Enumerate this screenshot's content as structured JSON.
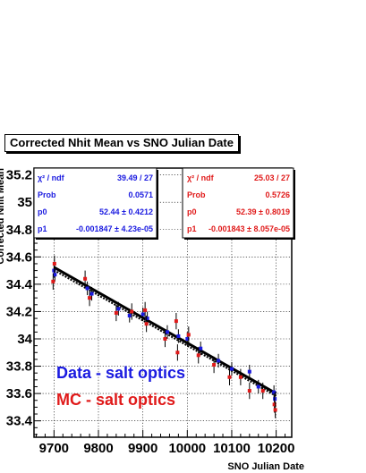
{
  "colors": {
    "data": "#1a1ae0",
    "mc": "#e01a1a",
    "fit": "#000000"
  },
  "chart_data": {
    "type": "scatter",
    "title": "Corrected Nhit Mean vs SNO Julian Date",
    "xlabel": "SNO Julian Date",
    "ylabel": "Corrected Nhit Mean",
    "xlim": [
      9655,
      10235
    ],
    "ylim": [
      33.28,
      35.25
    ],
    "xticks": [
      "9700",
      "9800",
      "9900",
      "10000",
      "10100",
      "10200"
    ],
    "xtick_values": [
      9700,
      9800,
      9900,
      10000,
      10100,
      10200
    ],
    "yticks": [
      "33.4",
      "33.6",
      "33.8",
      "34",
      "34.2",
      "34.4",
      "34.6",
      "34.8",
      "35",
      "35.2"
    ],
    "ytick_values": [
      33.4,
      33.6,
      33.8,
      34.0,
      34.2,
      34.4,
      34.6,
      34.8,
      35.0,
      35.2
    ],
    "grid": true,
    "series": [
      {
        "name": "Data - salt optics",
        "color": "#1a1ae0",
        "points": [
          {
            "x": 9700,
            "y": 34.5,
            "err": 0.05
          },
          {
            "x": 9702,
            "y": 34.47,
            "err": 0.05
          },
          {
            "x": 9775,
            "y": 34.37,
            "err": 0.05
          },
          {
            "x": 9785,
            "y": 34.33,
            "err": 0.05
          },
          {
            "x": 9845,
            "y": 34.22,
            "err": 0.05
          },
          {
            "x": 9870,
            "y": 34.17,
            "err": 0.05
          },
          {
            "x": 9900,
            "y": 34.18,
            "err": 0.05
          },
          {
            "x": 9910,
            "y": 34.15,
            "err": 0.05
          },
          {
            "x": 9955,
            "y": 34.05,
            "err": 0.05
          },
          {
            "x": 9980,
            "y": 34.02,
            "err": 0.05
          },
          {
            "x": 10000,
            "y": 34.0,
            "err": 0.05
          },
          {
            "x": 10030,
            "y": 33.93,
            "err": 0.05
          },
          {
            "x": 10070,
            "y": 33.84,
            "err": 0.05
          },
          {
            "x": 10100,
            "y": 33.78,
            "err": 0.05
          },
          {
            "x": 10140,
            "y": 33.76,
            "err": 0.05
          },
          {
            "x": 10160,
            "y": 33.65,
            "err": 0.05
          },
          {
            "x": 10195,
            "y": 33.61,
            "err": 0.05
          },
          {
            "x": 10197,
            "y": 33.56,
            "err": 0.05
          }
        ],
        "fit": {
          "p0": 52.44,
          "p1": -0.001847
        }
      },
      {
        "name": "MC - salt optics",
        "color": "#e01a1a",
        "points": [
          {
            "x": 9698,
            "y": 34.42,
            "err": 0.06
          },
          {
            "x": 9701,
            "y": 34.55,
            "err": 0.06
          },
          {
            "x": 9770,
            "y": 34.44,
            "err": 0.06
          },
          {
            "x": 9780,
            "y": 34.3,
            "err": 0.06
          },
          {
            "x": 9840,
            "y": 34.19,
            "err": 0.06
          },
          {
            "x": 9875,
            "y": 34.2,
            "err": 0.06
          },
          {
            "x": 9905,
            "y": 34.21,
            "err": 0.06
          },
          {
            "x": 9908,
            "y": 34.11,
            "err": 0.06
          },
          {
            "x": 9950,
            "y": 34.0,
            "err": 0.06
          },
          {
            "x": 9975,
            "y": 34.13,
            "err": 0.06
          },
          {
            "x": 9978,
            "y": 33.9,
            "err": 0.06
          },
          {
            "x": 10003,
            "y": 34.03,
            "err": 0.06
          },
          {
            "x": 10025,
            "y": 33.88,
            "err": 0.06
          },
          {
            "x": 10060,
            "y": 33.81,
            "err": 0.06
          },
          {
            "x": 10095,
            "y": 33.72,
            "err": 0.06
          },
          {
            "x": 10120,
            "y": 33.72,
            "err": 0.06
          },
          {
            "x": 10140,
            "y": 33.62,
            "err": 0.06
          },
          {
            "x": 10170,
            "y": 33.62,
            "err": 0.06
          },
          {
            "x": 10196,
            "y": 33.52,
            "err": 0.06
          },
          {
            "x": 10198,
            "y": 33.48,
            "err": 0.06
          }
        ],
        "fit": {
          "p0": 52.39,
          "p1": -0.001843
        }
      }
    ],
    "stats_boxes": [
      {
        "color": "#1a1ae0",
        "rows": [
          {
            "label": "χ² / ndf",
            "value": "39.49 / 27"
          },
          {
            "label": "Prob",
            "value": "0.0571"
          },
          {
            "label": "p0",
            "value": "52.44 ± 0.4212"
          },
          {
            "label": "p1",
            "value": "-0.001847 ± 4.23e-05"
          }
        ]
      },
      {
        "color": "#e01a1a",
        "rows": [
          {
            "label": "χ² / ndf",
            "value": "25.03 / 27"
          },
          {
            "label": "Prob",
            "value": "0.5726"
          },
          {
            "label": "p0",
            "value": "52.39 ± 0.8019"
          },
          {
            "label": "p1",
            "value": "-0.001843 ± 8.057e-05"
          }
        ]
      }
    ],
    "legend": [
      {
        "label": "Data - salt optics",
        "color": "#1a1ae0"
      },
      {
        "label": "MC - salt optics",
        "color": "#e01a1a"
      }
    ]
  }
}
